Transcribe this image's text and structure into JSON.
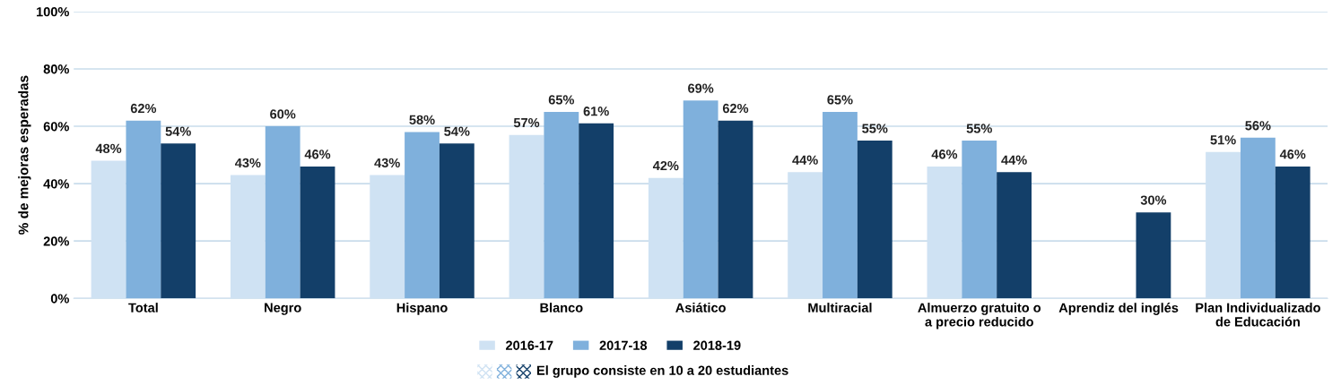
{
  "chart_data": {
    "type": "bar",
    "ylabel": "% de mejoras esperadas",
    "categories": [
      "Total",
      "Negro",
      "Hispano",
      "Blanco",
      "Asiático",
      "Multiracial",
      "Almuerzo gratuito o\na precio reducido",
      "Aprendiz del inglés",
      "Plan Individualizado\nde Educación"
    ],
    "series": [
      {
        "name": "2016-17",
        "color": "#cfe2f3",
        "values": [
          48,
          43,
          43,
          57,
          42,
          44,
          46,
          null,
          51
        ],
        "value_labels": [
          "48%",
          "43%",
          "43%",
          "57%",
          "42%",
          "44%",
          "46%",
          null,
          "51%"
        ]
      },
      {
        "name": "2017-18",
        "color": "#7fb0dc",
        "values": [
          62,
          60,
          58,
          65,
          69,
          65,
          55,
          null,
          56
        ],
        "value_labels": [
          "62%",
          "60%",
          "58%",
          "65%",
          "69%",
          "65%",
          "55%",
          null,
          "56%"
        ]
      },
      {
        "name": "2018-19",
        "color": "#133f69",
        "values": [
          54,
          46,
          54,
          61,
          62,
          55,
          44,
          30,
          46
        ],
        "value_labels": [
          "54%",
          "46%",
          "54%",
          "61%",
          "62%",
          "55%",
          "44%",
          "30%",
          "46%"
        ]
      }
    ],
    "ylim": [
      0,
      100
    ],
    "yticks": [
      {
        "value": 0,
        "label": "0%"
      },
      {
        "value": 20,
        "label": "20%"
      },
      {
        "value": 40,
        "label": "40%"
      },
      {
        "value": 60,
        "label": "60%"
      },
      {
        "value": 80,
        "label": "80%"
      },
      {
        "value": 100,
        "label": "100%"
      }
    ],
    "grid": "y",
    "legend": "bottom",
    "annotations": [
      "El grupo consiste en 10 a 20 estudiantes"
    ]
  }
}
